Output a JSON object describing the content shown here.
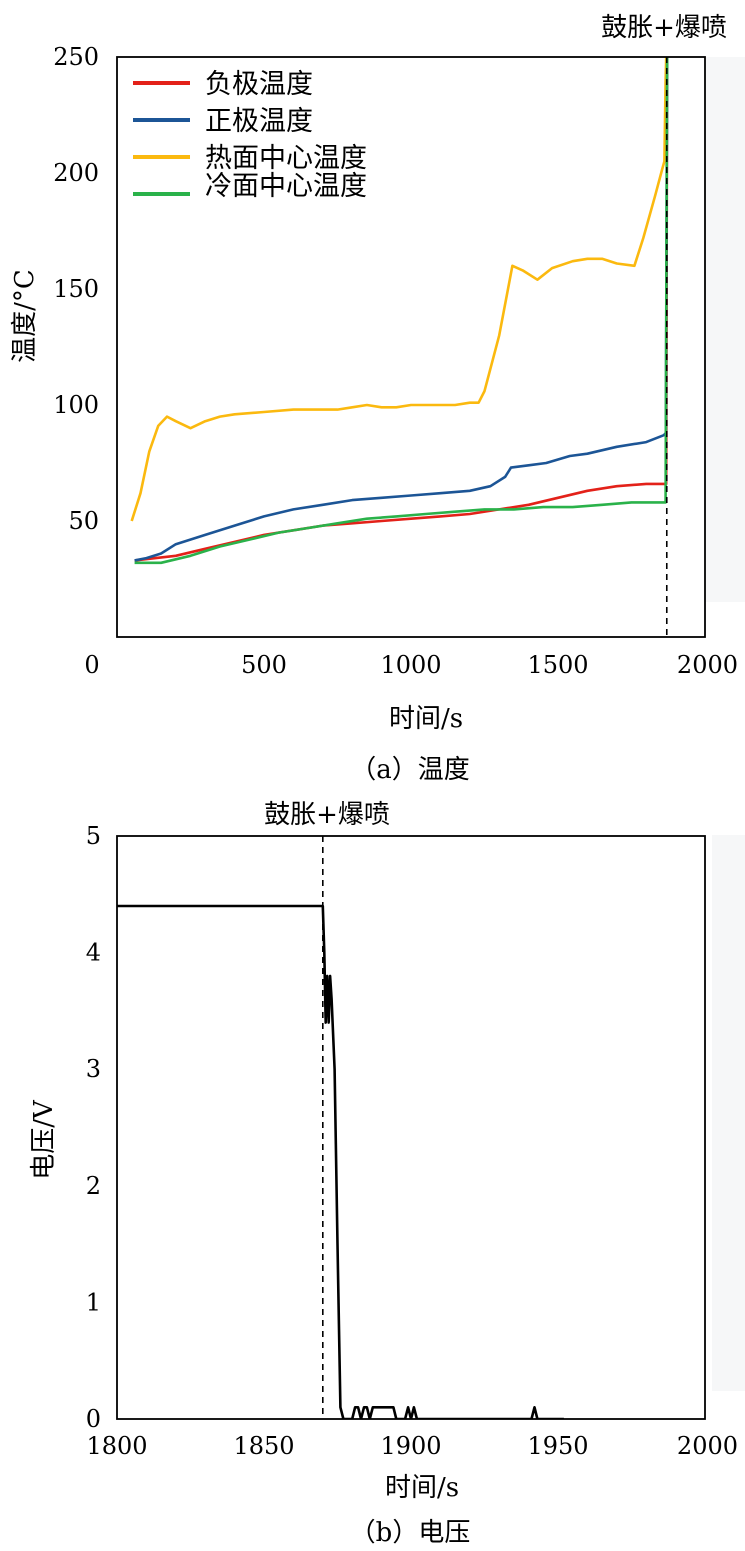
{
  "chart_data": [
    {
      "type": "line",
      "caption": "（a）温度",
      "event_label": "鼓胀+爆喷",
      "xlabel": "时间/s",
      "ylabel": "温度/°C",
      "xlim": [
        0,
        2000
      ],
      "ylim": [
        0,
        250
      ],
      "xticks": [
        "0",
        "500",
        "1000",
        "1500",
        "2000"
      ],
      "yticks": [
        "50",
        "100",
        "150",
        "200",
        "250"
      ],
      "event_x": 1870,
      "grid": false,
      "legend_position": "top-left",
      "series": [
        {
          "name": "负极温度",
          "color": "#e32119",
          "points": [
            [
              60,
              33
            ],
            [
              200,
              35
            ],
            [
              300,
              38
            ],
            [
              400,
              41
            ],
            [
              500,
              44
            ],
            [
              600,
              46
            ],
            [
              700,
              48
            ],
            [
              800,
              49
            ],
            [
              900,
              50
            ],
            [
              1000,
              51
            ],
            [
              1100,
              52
            ],
            [
              1200,
              53
            ],
            [
              1300,
              55
            ],
            [
              1400,
              57
            ],
            [
              1500,
              60
            ],
            [
              1600,
              63
            ],
            [
              1700,
              65
            ],
            [
              1800,
              66
            ],
            [
              1860,
              66
            ],
            [
              1868,
              66
            ],
            [
              1871,
              250
            ]
          ]
        },
        {
          "name": "正极温度",
          "color": "#1c5596",
          "points": [
            [
              60,
              33
            ],
            [
              100,
              34
            ],
            [
              150,
              36
            ],
            [
              200,
              40
            ],
            [
              300,
              44
            ],
            [
              400,
              48
            ],
            [
              500,
              52
            ],
            [
              600,
              55
            ],
            [
              700,
              57
            ],
            [
              800,
              59
            ],
            [
              900,
              60
            ],
            [
              1000,
              61
            ],
            [
              1100,
              62
            ],
            [
              1200,
              63
            ],
            [
              1270,
              65
            ],
            [
              1320,
              69
            ],
            [
              1340,
              73
            ],
            [
              1400,
              74
            ],
            [
              1460,
              75
            ],
            [
              1540,
              78
            ],
            [
              1600,
              79
            ],
            [
              1700,
              82
            ],
            [
              1800,
              84
            ],
            [
              1860,
              87
            ],
            [
              1867,
              88
            ],
            [
              1871,
              250
            ]
          ]
        },
        {
          "name": "热面中心温度",
          "color": "#fbb90f",
          "points": [
            [
              50,
              50
            ],
            [
              80,
              62
            ],
            [
              110,
              80
            ],
            [
              140,
              91
            ],
            [
              170,
              95
            ],
            [
              200,
              93
            ],
            [
              250,
              90
            ],
            [
              300,
              93
            ],
            [
              350,
              95
            ],
            [
              400,
              96
            ],
            [
              500,
              97
            ],
            [
              600,
              98
            ],
            [
              700,
              98
            ],
            [
              750,
              98
            ],
            [
              800,
              99
            ],
            [
              850,
              100
            ],
            [
              900,
              99
            ],
            [
              950,
              99
            ],
            [
              1000,
              100
            ],
            [
              1050,
              100
            ],
            [
              1100,
              100
            ],
            [
              1150,
              100
            ],
            [
              1200,
              101
            ],
            [
              1230,
              101
            ],
            [
              1250,
              106
            ],
            [
              1300,
              130
            ],
            [
              1345,
              160
            ],
            [
              1380,
              158
            ],
            [
              1430,
              154
            ],
            [
              1480,
              159
            ],
            [
              1550,
              162
            ],
            [
              1600,
              163
            ],
            [
              1650,
              163
            ],
            [
              1700,
              161
            ],
            [
              1760,
              160
            ],
            [
              1790,
              172
            ],
            [
              1830,
              190
            ],
            [
              1855,
              202
            ],
            [
              1862,
              205
            ],
            [
              1866,
              240
            ],
            [
              1868,
              250
            ]
          ]
        },
        {
          "name": "冷面中心温度",
          "color": "#2ab24a",
          "points": [
            [
              60,
              32
            ],
            [
              150,
              32
            ],
            [
              250,
              35
            ],
            [
              350,
              39
            ],
            [
              450,
              42
            ],
            [
              550,
              45
            ],
            [
              650,
              47
            ],
            [
              750,
              49
            ],
            [
              850,
              51
            ],
            [
              950,
              52
            ],
            [
              1050,
              53
            ],
            [
              1150,
              54
            ],
            [
              1250,
              55
            ],
            [
              1350,
              55
            ],
            [
              1450,
              56
            ],
            [
              1550,
              56
            ],
            [
              1650,
              57
            ],
            [
              1750,
              58
            ],
            [
              1850,
              58
            ],
            [
              1866,
              58
            ],
            [
              1871,
              250
            ]
          ]
        }
      ]
    },
    {
      "type": "line",
      "caption": "（b）电压",
      "event_label": "鼓胀+爆喷",
      "xlabel": "时间/s",
      "ylabel": "电压/V",
      "xlim": [
        1800,
        2000
      ],
      "ylim": [
        0,
        5
      ],
      "xticks": [
        "1800",
        "1850",
        "1900",
        "1950",
        "2000"
      ],
      "yticks": [
        "0",
        "1",
        "2",
        "3",
        "4",
        "5"
      ],
      "event_x": 1870,
      "grid": false,
      "series": [
        {
          "color": "#000000",
          "points": [
            [
              1800,
              4.4
            ],
            [
              1870,
              4.4
            ],
            [
              1870.5,
              4.0
            ],
            [
              1871,
              3.4
            ],
            [
              1871.5,
              3.8
            ],
            [
              1872,
              3.4
            ],
            [
              1872.5,
              3.8
            ],
            [
              1873,
              3.6
            ],
            [
              1874,
              3.0
            ],
            [
              1875,
              1.5
            ],
            [
              1876,
              0.1
            ],
            [
              1877,
              0.0
            ],
            [
              1880,
              0.0
            ],
            [
              1881,
              0.1
            ],
            [
              1882,
              0.1
            ],
            [
              1883,
              0.0
            ],
            [
              1884,
              0.1
            ],
            [
              1885,
              0.1
            ],
            [
              1886,
              0.0
            ],
            [
              1887,
              0.1
            ],
            [
              1888,
              0.1
            ],
            [
              1889,
              0.1
            ],
            [
              1892,
              0.1
            ],
            [
              1894,
              0.1
            ],
            [
              1895,
              0.0
            ],
            [
              1898,
              0.0
            ],
            [
              1899,
              0.1
            ],
            [
              1900,
              0.0
            ],
            [
              1901,
              0.1
            ],
            [
              1902,
              0.0
            ],
            [
              1941,
              0.0
            ],
            [
              1942,
              0.1
            ],
            [
              1943,
              0.0
            ],
            [
              1952,
              0.0
            ]
          ]
        }
      ]
    }
  ]
}
